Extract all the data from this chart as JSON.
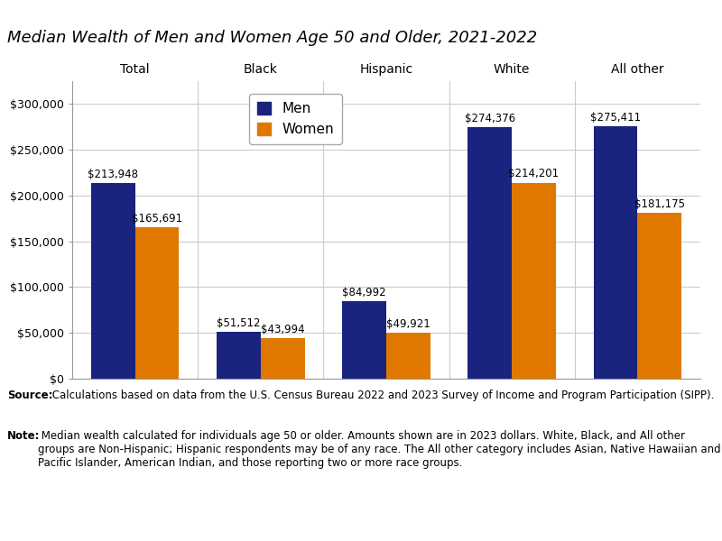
{
  "title": "Median Wealth of Men and Women Age 50 and Older, 2021-2022",
  "categories": [
    "Total",
    "Black",
    "Hispanic",
    "White",
    "All other"
  ],
  "men_values": [
    213948,
    51512,
    84992,
    274376,
    275411
  ],
  "women_values": [
    165691,
    43994,
    49921,
    214201,
    181175
  ],
  "men_labels": [
    "$213,948",
    "$51,512",
    "$84,992",
    "$274,376",
    "$275,411"
  ],
  "women_labels": [
    "$165,691",
    "$43,994",
    "$49,921",
    "$214,201",
    "$181,175"
  ],
  "men_color": "#1a237e",
  "women_color": "#e07800",
  "ylim": [
    0,
    325000
  ],
  "yticks": [
    0,
    50000,
    100000,
    150000,
    200000,
    250000,
    300000
  ],
  "ytick_labels": [
    "$0",
    "$50,000",
    "$100,000",
    "$150,000",
    "$200,000",
    "$250,000",
    "$300,000"
  ],
  "bar_width": 0.35,
  "legend_labels": [
    "Men",
    "Women"
  ],
  "source_bold": "Source:",
  "source_rest": " Calculations based on data from the U.S. Census Bureau 2022 and 2023 Survey of Income and Program Participation (SIPP).",
  "note_bold": "Note:",
  "note_rest": " Median wealth calculated for individuals age 50 or older. Amounts shown are in 2023 dollars. White, Black, and All other groups are Non-Hispanic; Hispanic respondents may be of any race. The All other category includes Asian, Native Hawaiian and Pacific Islander, American Indian, and those reporting two or more race groups.",
  "background_color": "#ffffff",
  "grid_color": "#cccccc",
  "label_fontsize": 8.5,
  "title_fontsize": 13,
  "tick_fontsize": 9,
  "legend_fontsize": 11,
  "category_fontsize": 10,
  "footer_fontsize": 8.5
}
